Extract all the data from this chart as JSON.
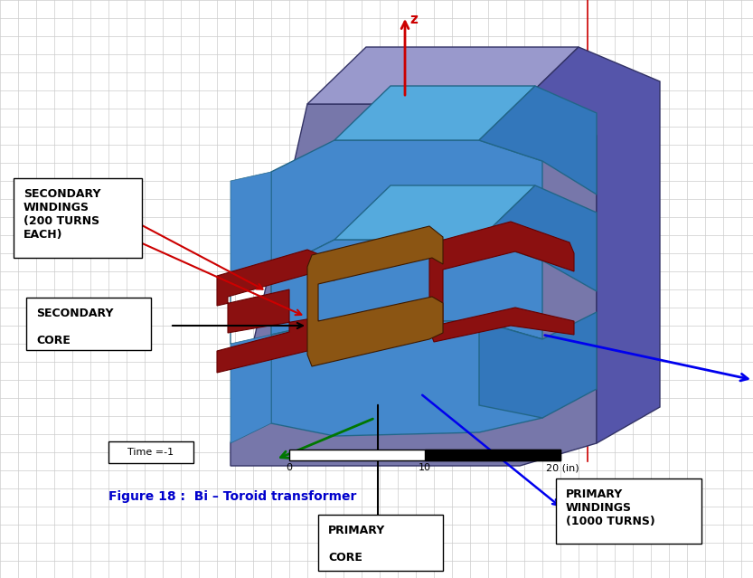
{
  "title": "Figure 18 :  Bi – Toroid transformer",
  "title_color": "#0000CC",
  "bg_color": "#ffffff",
  "grid_color": "#cccccc",
  "time_label": "Time =-1",
  "scalebar_label": "20 (in)",
  "labels": {
    "secondary_windings": "SECONDARY\nWINDINGS\n(200 TURNS\nEACH)",
    "secondary_core": "SECONDARY\n\nCORE",
    "primary_core": "PRIMARY\n\nCORE",
    "primary_windings": "PRIMARY\nWINDINGS\n(1000 TURNS)"
  },
  "colors": {
    "purple_outer": "#7777aa",
    "purple_light": "#9999cc",
    "purple_dark": "#5555aa",
    "blue_front": "#4488cc",
    "blue_top": "#55aadd",
    "blue_right": "#3377bb",
    "brown": "#8B5513",
    "dark_red": "#8B1010",
    "dark_red2": "#660000",
    "axis_red": "#cc0000",
    "axis_green": "#007700",
    "axis_blue": "#0000ee",
    "red_line": "#cc0000"
  }
}
